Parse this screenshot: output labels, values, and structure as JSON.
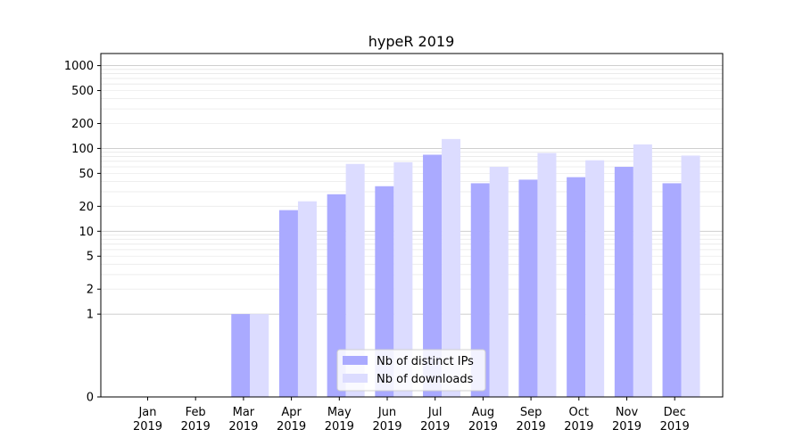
{
  "chart_data": {
    "type": "bar",
    "title": "hypeR 2019",
    "xlabel": "",
    "ylabel": "",
    "y_scale": "symlog",
    "y_tick_labels": [
      "0",
      "1",
      "2",
      "5",
      "10",
      "20",
      "50",
      "100",
      "200",
      "500",
      "1000"
    ],
    "y_ticks": [
      0,
      1,
      2,
      5,
      10,
      20,
      50,
      100,
      200,
      500,
      1000
    ],
    "categories": [
      {
        "month": "Jan",
        "year": "2019"
      },
      {
        "month": "Feb",
        "year": "2019"
      },
      {
        "month": "Mar",
        "year": "2019"
      },
      {
        "month": "Apr",
        "year": "2019"
      },
      {
        "month": "May",
        "year": "2019"
      },
      {
        "month": "Jun",
        "year": "2019"
      },
      {
        "month": "Jul",
        "year": "2019"
      },
      {
        "month": "Aug",
        "year": "2019"
      },
      {
        "month": "Sep",
        "year": "2019"
      },
      {
        "month": "Oct",
        "year": "2019"
      },
      {
        "month": "Nov",
        "year": "2019"
      },
      {
        "month": "Dec",
        "year": "2019"
      }
    ],
    "series": [
      {
        "name": "Nb of distinct IPs",
        "color": "#aaaaff",
        "values": [
          0,
          0,
          1,
          18,
          28,
          35,
          84,
          38,
          42,
          45,
          60,
          38
        ]
      },
      {
        "name": "Nb of downloads",
        "color": "#dcdcff",
        "values": [
          0,
          0,
          1,
          23,
          65,
          68,
          130,
          60,
          88,
          72,
          112,
          82
        ]
      }
    ],
    "grid": true,
    "legend_position": "lower-center"
  }
}
